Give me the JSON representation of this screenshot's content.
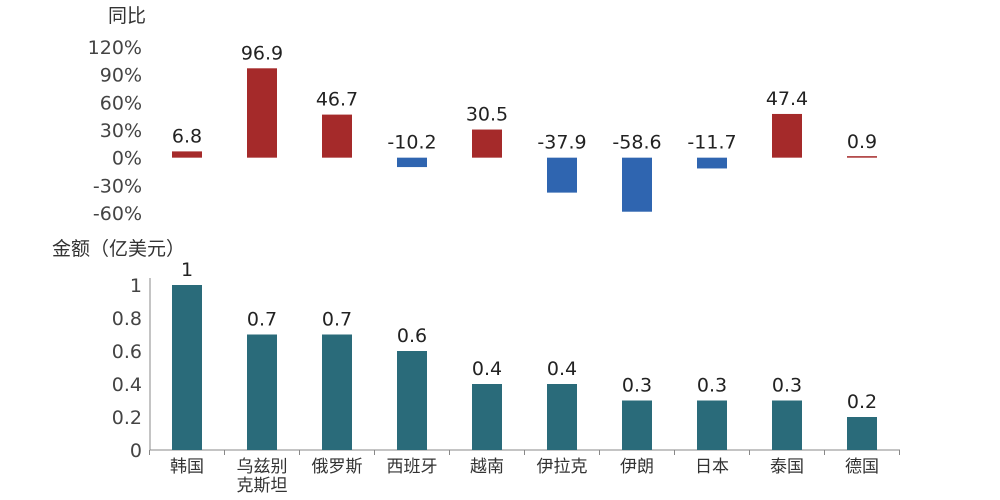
{
  "chart_data": [
    {
      "type": "bar",
      "title": "",
      "ylabel": "同比",
      "categories": [
        "韩国",
        "乌兹别克斯坦",
        "俄罗斯",
        "西班牙",
        "越南",
        "伊拉克",
        "伊朗",
        "日本",
        "泰国",
        "德国"
      ],
      "values": [
        6.8,
        96.9,
        46.7,
        -10.2,
        30.5,
        -37.9,
        -58.6,
        -11.7,
        47.4,
        0.9
      ],
      "data_labels": [
        "6.8",
        "96.9",
        "46.7",
        "-10.2",
        "30.5",
        "-37.9",
        "-58.6",
        "-11.7",
        "47.4",
        "0.9"
      ],
      "ylim": [
        -60,
        120
      ],
      "yticks": [
        120,
        90,
        60,
        30,
        0,
        -30,
        -60
      ],
      "ytick_labels": [
        "120%",
        "90%",
        "60%",
        "30%",
        "0%",
        "-30%",
        "-60%"
      ],
      "colors": {
        "positive": "#a52a2a",
        "negative": "#2f65b0"
      },
      "grid": false
    },
    {
      "type": "bar",
      "title": "",
      "ylabel": "金额（亿美元）",
      "categories": [
        "韩国",
        "乌兹别克斯坦",
        "俄罗斯",
        "西班牙",
        "越南",
        "伊拉克",
        "伊朗",
        "日本",
        "泰国",
        "德国"
      ],
      "category_lines": [
        [
          "韩国"
        ],
        [
          "乌兹别",
          "克斯坦"
        ],
        [
          "俄罗斯"
        ],
        [
          "西班牙"
        ],
        [
          "越南"
        ],
        [
          "伊拉克"
        ],
        [
          "伊朗"
        ],
        [
          "日本"
        ],
        [
          "泰国"
        ],
        [
          "德国"
        ]
      ],
      "values": [
        1,
        0.7,
        0.7,
        0.6,
        0.4,
        0.4,
        0.3,
        0.3,
        0.3,
        0.2
      ],
      "data_labels": [
        "1",
        "0.7",
        "0.7",
        "0.6",
        "0.4",
        "0.4",
        "0.3",
        "0.3",
        "0.3",
        "0.2"
      ],
      "ylim": [
        0,
        1
      ],
      "yticks": [
        1,
        0.8,
        0.6,
        0.4,
        0.2,
        0
      ],
      "ytick_labels": [
        "1",
        "0.8",
        "0.6",
        "0.4",
        "0.2",
        "0"
      ],
      "colors": {
        "bar": "#2a6b7a",
        "axis": "#888888"
      },
      "grid": false
    }
  ]
}
